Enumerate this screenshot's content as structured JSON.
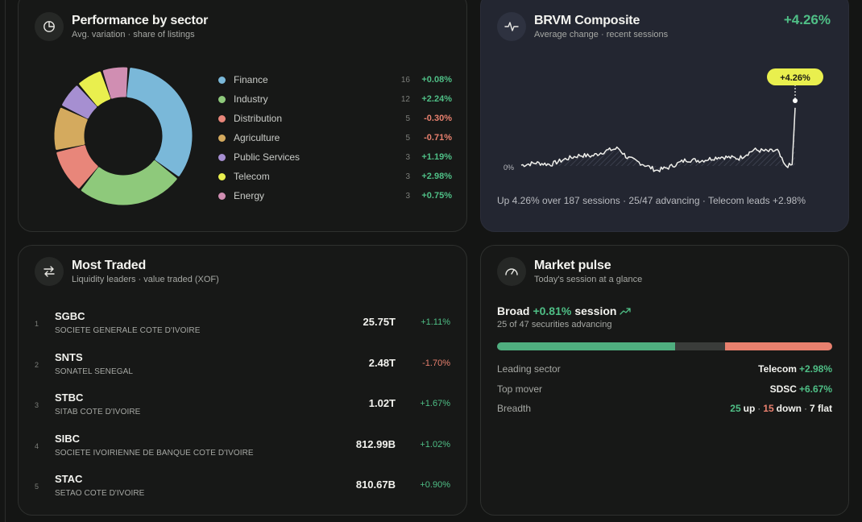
{
  "sector": {
    "title": "Performance by sector",
    "subtitle": "Avg. variation · share of listings",
    "icon": "pie-chart-icon",
    "items": [
      {
        "name": "Finance",
        "count": "16",
        "change": "+0.08%",
        "color": "#7ab8d9",
        "dir": "pos"
      },
      {
        "name": "Industry",
        "count": "12",
        "change": "+2.24%",
        "color": "#8ec97b",
        "dir": "pos"
      },
      {
        "name": "Distribution",
        "count": "5",
        "change": "-0.30%",
        "color": "#e8867a",
        "dir": "neg"
      },
      {
        "name": "Agriculture",
        "count": "5",
        "change": "-0.71%",
        "color": "#d4aa5e",
        "dir": "neg"
      },
      {
        "name": "Public Services",
        "count": "3",
        "change": "+1.19%",
        "color": "#a68fd1",
        "dir": "pos"
      },
      {
        "name": "Telecom",
        "count": "3",
        "change": "+2.98%",
        "color": "#e9ef4e",
        "dir": "pos"
      },
      {
        "name": "Energy",
        "count": "3",
        "change": "+0.75%",
        "color": "#d08eb2",
        "dir": "pos"
      }
    ]
  },
  "brvm": {
    "title": "BRVM Composite",
    "subtitle": "Average change · recent sessions",
    "change": "+4.26%",
    "tooltip": "+4.26%",
    "zero_label": "0%",
    "footer": "Up 4.26% over 187 sessions · 25/47 advancing · Telecom leads +2.98%",
    "icon": "pulse-line-icon"
  },
  "traded": {
    "title": "Most Traded",
    "subtitle": "Liquidity leaders · value traded (XOF)",
    "icon": "swap-arrows-icon",
    "rows": [
      {
        "rank": "1",
        "symbol": "SGBC",
        "name": "SOCIETE GENERALE COTE D'IVOIRE",
        "value": "25.75T",
        "change": "+1.11%",
        "dir": "pos"
      },
      {
        "rank": "2",
        "symbol": "SNTS",
        "name": "SONATEL SENEGAL",
        "value": "2.48T",
        "change": "-1.70%",
        "dir": "neg"
      },
      {
        "rank": "3",
        "symbol": "STBC",
        "name": "SITAB COTE D'IVOIRE",
        "value": "1.02T",
        "change": "+1.67%",
        "dir": "pos"
      },
      {
        "rank": "4",
        "symbol": "SIBC",
        "name": "SOCIETE IVOIRIENNE DE BANQUE COTE D'IVOIRE",
        "value": "812.99B",
        "change": "+1.02%",
        "dir": "pos"
      },
      {
        "rank": "5",
        "symbol": "STAC",
        "name": "SETAO COTE D'IVOIRE",
        "value": "810.67B",
        "change": "+0.90%",
        "dir": "pos"
      }
    ]
  },
  "pulse": {
    "title": "Market pulse",
    "subtitle": "Today's session at a glance",
    "icon": "gauge-icon",
    "headline_pre": "Broad",
    "headline_change": "+0.81%",
    "headline_post": "session",
    "headline_icon": "trend-up-icon",
    "advancing_text": "25 of 47 securities advancing",
    "breadth": {
      "up": 25,
      "flat": 7,
      "down": 15
    },
    "colors": {
      "up": "#4fae7f",
      "flat": "#3a3c3a",
      "down": "#e8806e"
    },
    "leading_label": "Leading sector",
    "leading_name": "Telecom",
    "leading_change": "+2.98%",
    "mover_label": "Top mover",
    "mover_name": "SDSC",
    "mover_change": "+6.67%",
    "breadth_label": "Breadth",
    "breadth_up": "25",
    "breadth_up_word": "up",
    "breadth_sep1": "·",
    "breadth_down": "15",
    "breadth_down_word": "down",
    "breadth_sep2": "·",
    "breadth_flat": "7 flat"
  }
}
